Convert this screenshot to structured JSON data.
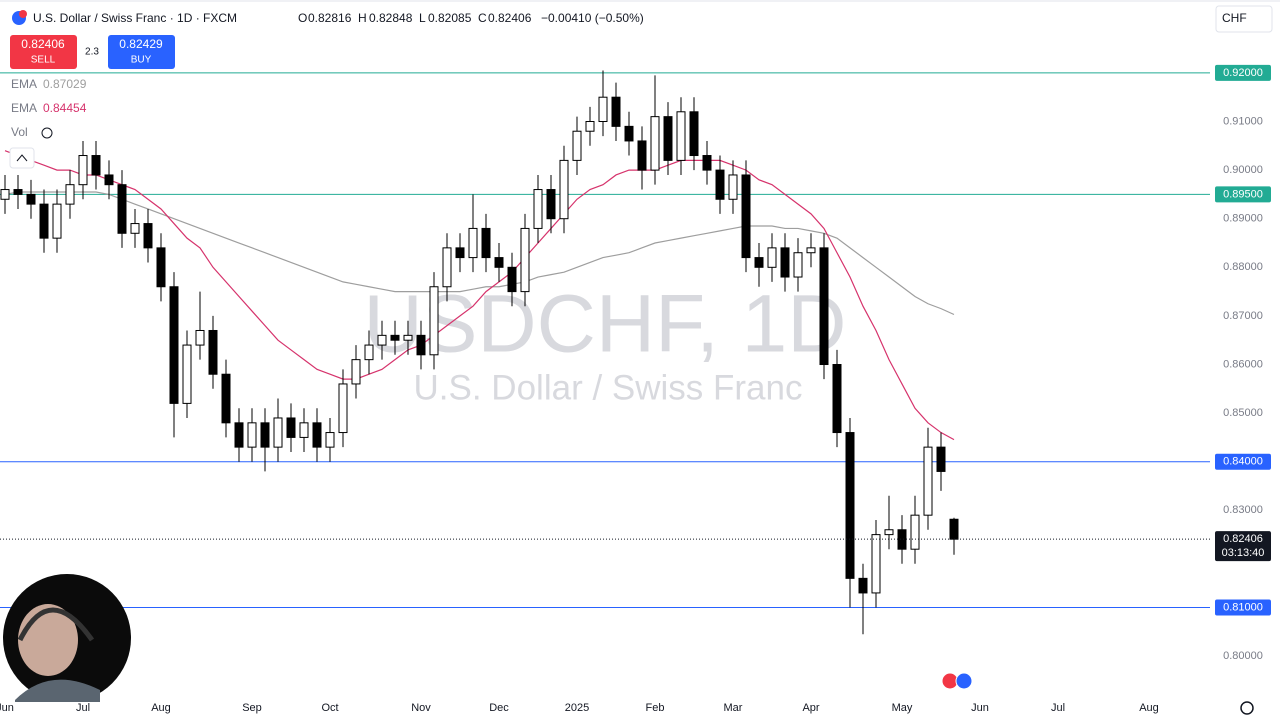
{
  "chart_data": {
    "type": "candlestick",
    "title": "U.S. Dollar / Swiss Franc · 1D · FXCM",
    "ohlc_labels": [
      "O",
      "H",
      "L",
      "C"
    ],
    "change": "−0.00410 (−0.50%)",
    "sell": {
      "price": 0.82406,
      "label": "SELL"
    },
    "buy": {
      "price": 0.82429,
      "label": "BUY"
    },
    "spread": 2.3,
    "currency": "CHF",
    "volume_label": "Vol",
    "countdown": "03:13:40",
    "watermark": [
      "USDCHF, 1D",
      "U.S. Dollar / Swiss Franc"
    ],
    "up_color": "#ffffff",
    "down_color": "#000000",
    "categories": [
      "Jun",
      null,
      null,
      null,
      null,
      null,
      "Jul",
      null,
      null,
      null,
      null,
      null,
      "Aug",
      null,
      null,
      null,
      null,
      null,
      null,
      "Sep",
      null,
      null,
      null,
      null,
      null,
      "Oct",
      null,
      null,
      null,
      null,
      null,
      null,
      "Nov",
      null,
      null,
      null,
      null,
      null,
      "Dec",
      null,
      null,
      null,
      null,
      null,
      "2025",
      null,
      null,
      null,
      null,
      null,
      "Feb",
      null,
      null,
      null,
      null,
      null,
      "Mar",
      null,
      null,
      null,
      null,
      null,
      "Apr",
      null,
      null,
      null,
      null,
      null,
      null,
      "May",
      null,
      null,
      null,
      null,
      null,
      "Jun",
      null,
      null,
      null,
      null,
      null,
      "Jul",
      null,
      null,
      null,
      null,
      null,
      null,
      "Aug",
      null,
      null,
      null,
      null
    ],
    "open": [
      0.894,
      0.896,
      0.895,
      0.893,
      0.886,
      0.893,
      0.897,
      0.903,
      0.899,
      0.897,
      0.887,
      0.889,
      0.884,
      0.876,
      0.852,
      0.864,
      0.867,
      0.858,
      0.848,
      0.843,
      0.848,
      0.843,
      0.849,
      0.845,
      0.848,
      0.843,
      0.846,
      0.856,
      0.861,
      0.864,
      0.866,
      0.865,
      0.866,
      0.862,
      0.876,
      0.884,
      0.882,
      0.888,
      0.882,
      0.88,
      0.875,
      0.888,
      0.896,
      0.89,
      0.902,
      0.908,
      0.91,
      0.915,
      0.909,
      0.906,
      0.9,
      0.911,
      0.902,
      0.912,
      0.903,
      0.9,
      0.894,
      0.899,
      0.882,
      0.88,
      0.884,
      0.878,
      0.883,
      0.884,
      0.86,
      0.846,
      0.816,
      0.813,
      0.825,
      0.826,
      0.822,
      0.829,
      0.843,
      0.82816,
      null,
      null,
      null,
      null,
      null,
      null,
      null,
      null,
      null,
      null,
      null,
      null,
      null,
      null,
      null,
      null,
      null,
      null,
      null
    ],
    "high": [
      0.899,
      0.899,
      0.898,
      0.896,
      0.896,
      0.9,
      0.906,
      0.906,
      0.902,
      0.9,
      0.892,
      0.892,
      0.887,
      0.879,
      0.867,
      0.875,
      0.87,
      0.861,
      0.851,
      0.851,
      0.851,
      0.853,
      0.852,
      0.851,
      0.851,
      0.849,
      0.859,
      0.864,
      0.867,
      0.869,
      0.869,
      0.869,
      0.869,
      0.879,
      0.887,
      0.887,
      0.895,
      0.891,
      0.885,
      0.883,
      0.891,
      0.899,
      0.899,
      0.905,
      0.911,
      0.913,
      0.9205,
      0.918,
      0.912,
      0.909,
      0.9195,
      0.914,
      0.915,
      0.915,
      0.906,
      0.903,
      0.902,
      0.902,
      0.885,
      0.887,
      0.887,
      0.886,
      0.887,
      0.887,
      0.863,
      0.849,
      0.819,
      0.828,
      0.833,
      0.829,
      0.833,
      0.847,
      0.846,
      0.82848,
      null,
      null,
      null,
      null,
      null,
      null,
      null,
      null,
      null,
      null,
      null,
      null,
      null,
      null,
      null,
      null,
      null,
      null,
      null
    ],
    "low": [
      0.891,
      0.892,
      0.89,
      0.883,
      0.883,
      0.89,
      0.894,
      0.896,
      0.894,
      0.884,
      0.884,
      0.881,
      0.873,
      0.845,
      0.849,
      0.861,
      0.855,
      0.845,
      0.84,
      0.84,
      0.838,
      0.84,
      0.842,
      0.842,
      0.84,
      0.84,
      0.843,
      0.853,
      0.858,
      0.861,
      0.862,
      0.862,
      0.859,
      0.859,
      0.873,
      0.879,
      0.879,
      0.879,
      0.877,
      0.872,
      0.872,
      0.885,
      0.887,
      0.887,
      0.899,
      0.905,
      0.907,
      0.906,
      0.903,
      0.896,
      0.897,
      0.899,
      0.899,
      0.9,
      0.897,
      0.891,
      0.891,
      0.879,
      0.876,
      0.877,
      0.875,
      0.875,
      0.88,
      0.857,
      0.843,
      0.81,
      0.8045,
      0.81,
      0.822,
      0.819,
      0.819,
      0.826,
      0.834,
      0.82085,
      null,
      null,
      null,
      null,
      null,
      null,
      null,
      null,
      null,
      null,
      null,
      null,
      null,
      null,
      null,
      null,
      null,
      null,
      null
    ],
    "close": [
      0.896,
      0.895,
      0.893,
      0.886,
      0.893,
      0.897,
      0.903,
      0.899,
      0.897,
      0.887,
      0.889,
      0.884,
      0.876,
      0.852,
      0.864,
      0.867,
      0.858,
      0.848,
      0.843,
      0.848,
      0.843,
      0.849,
      0.845,
      0.848,
      0.843,
      0.846,
      0.856,
      0.861,
      0.864,
      0.866,
      0.865,
      0.866,
      0.862,
      0.876,
      0.884,
      0.882,
      0.888,
      0.882,
      0.88,
      0.875,
      0.888,
      0.896,
      0.89,
      0.902,
      0.908,
      0.91,
      0.915,
      0.909,
      0.906,
      0.9,
      0.911,
      0.902,
      0.912,
      0.903,
      0.9,
      0.894,
      0.899,
      0.882,
      0.88,
      0.884,
      0.878,
      0.883,
      0.884,
      0.86,
      0.846,
      0.816,
      0.813,
      0.825,
      0.826,
      0.822,
      0.829,
      0.843,
      0.838,
      0.82406,
      null,
      null,
      null,
      null,
      null,
      null,
      null,
      null,
      null,
      null,
      null,
      null,
      null,
      null,
      null,
      null,
      null,
      null,
      null
    ],
    "series": [
      {
        "name": "EMA",
        "color": "#9e9e9e",
        "values": [
          0.895,
          0.8955,
          0.8955,
          0.8955,
          0.8955,
          0.8955,
          0.8955,
          0.8955,
          0.895,
          0.894,
          0.893,
          0.892,
          0.891,
          0.89,
          0.889,
          0.888,
          0.887,
          0.886,
          0.885,
          0.884,
          0.883,
          0.882,
          0.881,
          0.88,
          0.879,
          0.878,
          0.877,
          0.8765,
          0.876,
          0.8755,
          0.875,
          0.875,
          0.875,
          0.875,
          0.875,
          0.875,
          0.8755,
          0.876,
          0.876,
          0.8765,
          0.877,
          0.878,
          0.8785,
          0.879,
          0.88,
          0.881,
          0.882,
          0.8825,
          0.883,
          0.884,
          0.885,
          0.8855,
          0.886,
          0.8865,
          0.887,
          0.8875,
          0.888,
          0.8885,
          0.8885,
          0.8885,
          0.888,
          0.888,
          0.8875,
          0.887,
          0.886,
          0.884,
          0.882,
          0.88,
          0.878,
          0.876,
          0.874,
          0.8725,
          0.8715,
          0.87029,
          null,
          null,
          null,
          null,
          null,
          null,
          null,
          null,
          null,
          null,
          null,
          null,
          null,
          null,
          null,
          null,
          null,
          null,
          null
        ]
      },
      {
        "name": "EMA",
        "color": "#d6336c",
        "values": [
          0.904,
          0.903,
          0.902,
          0.901,
          0.9,
          0.9,
          0.899,
          0.899,
          0.898,
          0.897,
          0.896,
          0.894,
          0.892,
          0.889,
          0.886,
          0.884,
          0.88,
          0.877,
          0.874,
          0.871,
          0.868,
          0.865,
          0.863,
          0.861,
          0.859,
          0.858,
          0.857,
          0.857,
          0.858,
          0.859,
          0.861,
          0.863,
          0.864,
          0.866,
          0.868,
          0.87,
          0.872,
          0.875,
          0.877,
          0.879,
          0.882,
          0.885,
          0.888,
          0.891,
          0.894,
          0.896,
          0.897,
          0.899,
          0.9,
          0.9,
          0.9,
          0.901,
          0.902,
          0.902,
          0.902,
          0.902,
          0.901,
          0.9,
          0.898,
          0.897,
          0.895,
          0.893,
          0.891,
          0.888,
          0.883,
          0.878,
          0.872,
          0.867,
          0.861,
          0.856,
          0.851,
          0.848,
          0.846,
          0.84454,
          null,
          null,
          null,
          null,
          null,
          null,
          null,
          null,
          null,
          null,
          null,
          null,
          null,
          null,
          null,
          null,
          null,
          null,
          null
        ]
      }
    ],
    "levels": [
      {
        "value": 0.92,
        "label": "0.92000",
        "color": "#22ab94"
      },
      {
        "value": 0.895,
        "label": "0.89500",
        "color": "#22ab94"
      },
      {
        "value": 0.84,
        "label": "0.84000",
        "color": "#2962ff"
      },
      {
        "value": 0.81,
        "label": "0.81000",
        "color": "#2962ff"
      }
    ],
    "ylim": [
      0.792,
      0.935
    ],
    "yticks": [
      {
        "value": 0.91,
        "label": "0.91000"
      },
      {
        "value": 0.9,
        "label": "0.90000"
      },
      {
        "value": 0.89,
        "label": "0.89000"
      },
      {
        "value": 0.88,
        "label": "0.88000"
      },
      {
        "value": 0.87,
        "label": "0.87000"
      },
      {
        "value": 0.86,
        "label": "0.86000"
      },
      {
        "value": 0.85,
        "label": "0.85000"
      },
      {
        "value": 0.83,
        "label": "0.83000"
      },
      {
        "value": 0.8,
        "label": "0.80000"
      }
    ]
  }
}
